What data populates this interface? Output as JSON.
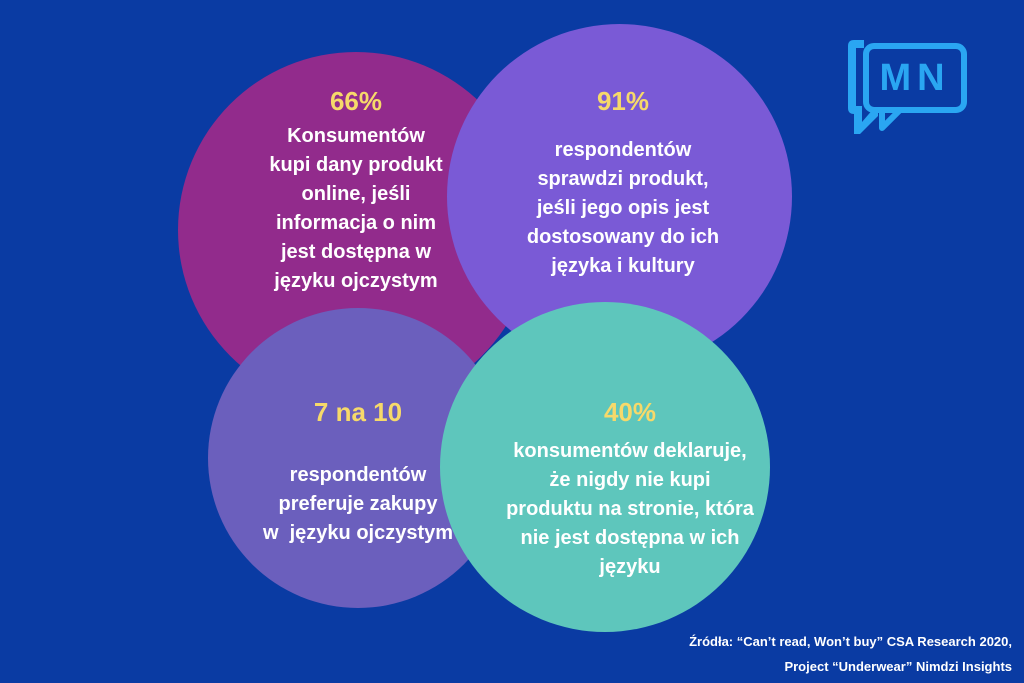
{
  "logo": {
    "text": "MN",
    "icon": "speech-bubble-icon",
    "color": "#2aa6f2"
  },
  "colors": {
    "background": "#0a3ba3",
    "magenta": "#922b8c",
    "violet": "#7a5ad6",
    "slate": "#6b5fbd",
    "teal": "#5ec6bc",
    "highlight": "#f6d96a"
  },
  "stats": [
    {
      "value": "66%",
      "lines": [
        "Konsumentów",
        "kupi dany produkt",
        "online, jeśli",
        "informacja o nim",
        "jest dostępna w",
        "języku ojczystym"
      ]
    },
    {
      "value": "91%",
      "lines": [
        "respondentów",
        "sprawdzi produkt,",
        "jeśli jego opis jest",
        "dostosowany do ich",
        "języka i kultury"
      ]
    },
    {
      "value": "7 na 10",
      "lines": [
        "respondentów",
        "preferuje zakupy",
        "w  języku ojczystym"
      ]
    },
    {
      "value": "40%",
      "lines": [
        "konsumentów deklaruje,",
        "że nigdy nie kupi",
        "produktu na stronie, która",
        "nie jest dostępna w ich",
        "języku"
      ]
    }
  ],
  "source": {
    "line1": "Źródła: “Can’t read, Won’t buy” CSA Research 2020,",
    "line2": "Project “Underwear” Nimdzi Insights"
  }
}
